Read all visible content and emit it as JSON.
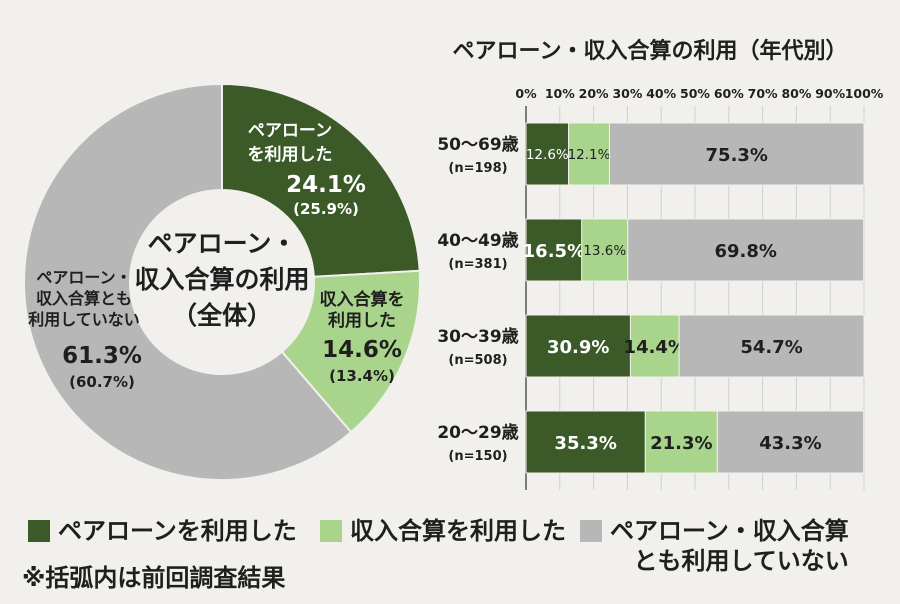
{
  "colors": {
    "dark_green": "#3b5a28",
    "light_green": "#a9d48c",
    "gray": "#b7b7b7",
    "background": "#f1f0ec",
    "text": "#1f1f1f"
  },
  "chart_data": [
    {
      "type": "pie",
      "subtype": "donut",
      "center_label": "ペアローン・\n収入合算の利用\n（全体）",
      "slices": [
        {
          "label": "ペアローン\nを利用した",
          "value": 24.1,
          "display": "24.1%",
          "previous": "(25.9%)",
          "color": "#3b5a28"
        },
        {
          "label": "収入合算を\n利用した",
          "value": 14.6,
          "display": "14.6%",
          "previous": "(13.4%)",
          "color": "#a9d48c"
        },
        {
          "label": "ペアローン・\n収入合算とも\n利用していない",
          "value": 61.3,
          "display": "61.3%",
          "previous": "(60.7%)",
          "color": "#b7b7b7"
        }
      ]
    },
    {
      "type": "bar",
      "orientation": "horizontal",
      "stacked": true,
      "title": "ペアローン・収入合算の利用（年代別）",
      "xlim": [
        0,
        100
      ],
      "x_ticks": [
        "0%",
        "10%",
        "20%",
        "30%",
        "40%",
        "50%",
        "60%",
        "70%",
        "80%",
        "90%",
        "100%"
      ],
      "categories": [
        {
          "age": "50〜69歳",
          "n": "(n=198)"
        },
        {
          "age": "40〜49歳",
          "n": "(n=381)"
        },
        {
          "age": "30〜39歳",
          "n": "(n=508)"
        },
        {
          "age": "20〜29歳",
          "n": "(n=150)"
        }
      ],
      "series": [
        {
          "name": "ペアローンを利用した",
          "color": "#3b5a28",
          "values": [
            12.6,
            16.5,
            30.9,
            35.3
          ]
        },
        {
          "name": "収入合算を利用した",
          "color": "#a9d48c",
          "values": [
            12.1,
            13.6,
            14.4,
            21.3
          ]
        },
        {
          "name": "ペアローン・収入合算\nとも利用していない",
          "color": "#b7b7b7",
          "values": [
            75.3,
            69.8,
            54.7,
            43.3
          ]
        }
      ],
      "grid": true,
      "legend": "bottom"
    }
  ],
  "legend": [
    {
      "label": "ペアローンを利用した",
      "color": "#3b5a28"
    },
    {
      "label": "収入合算を利用した",
      "color": "#a9d48c"
    },
    {
      "label": "ペアローン・収入合算\nとも利用していない",
      "color": "#b7b7b7"
    }
  ],
  "footnote": "※括弧内は前回調査結果"
}
